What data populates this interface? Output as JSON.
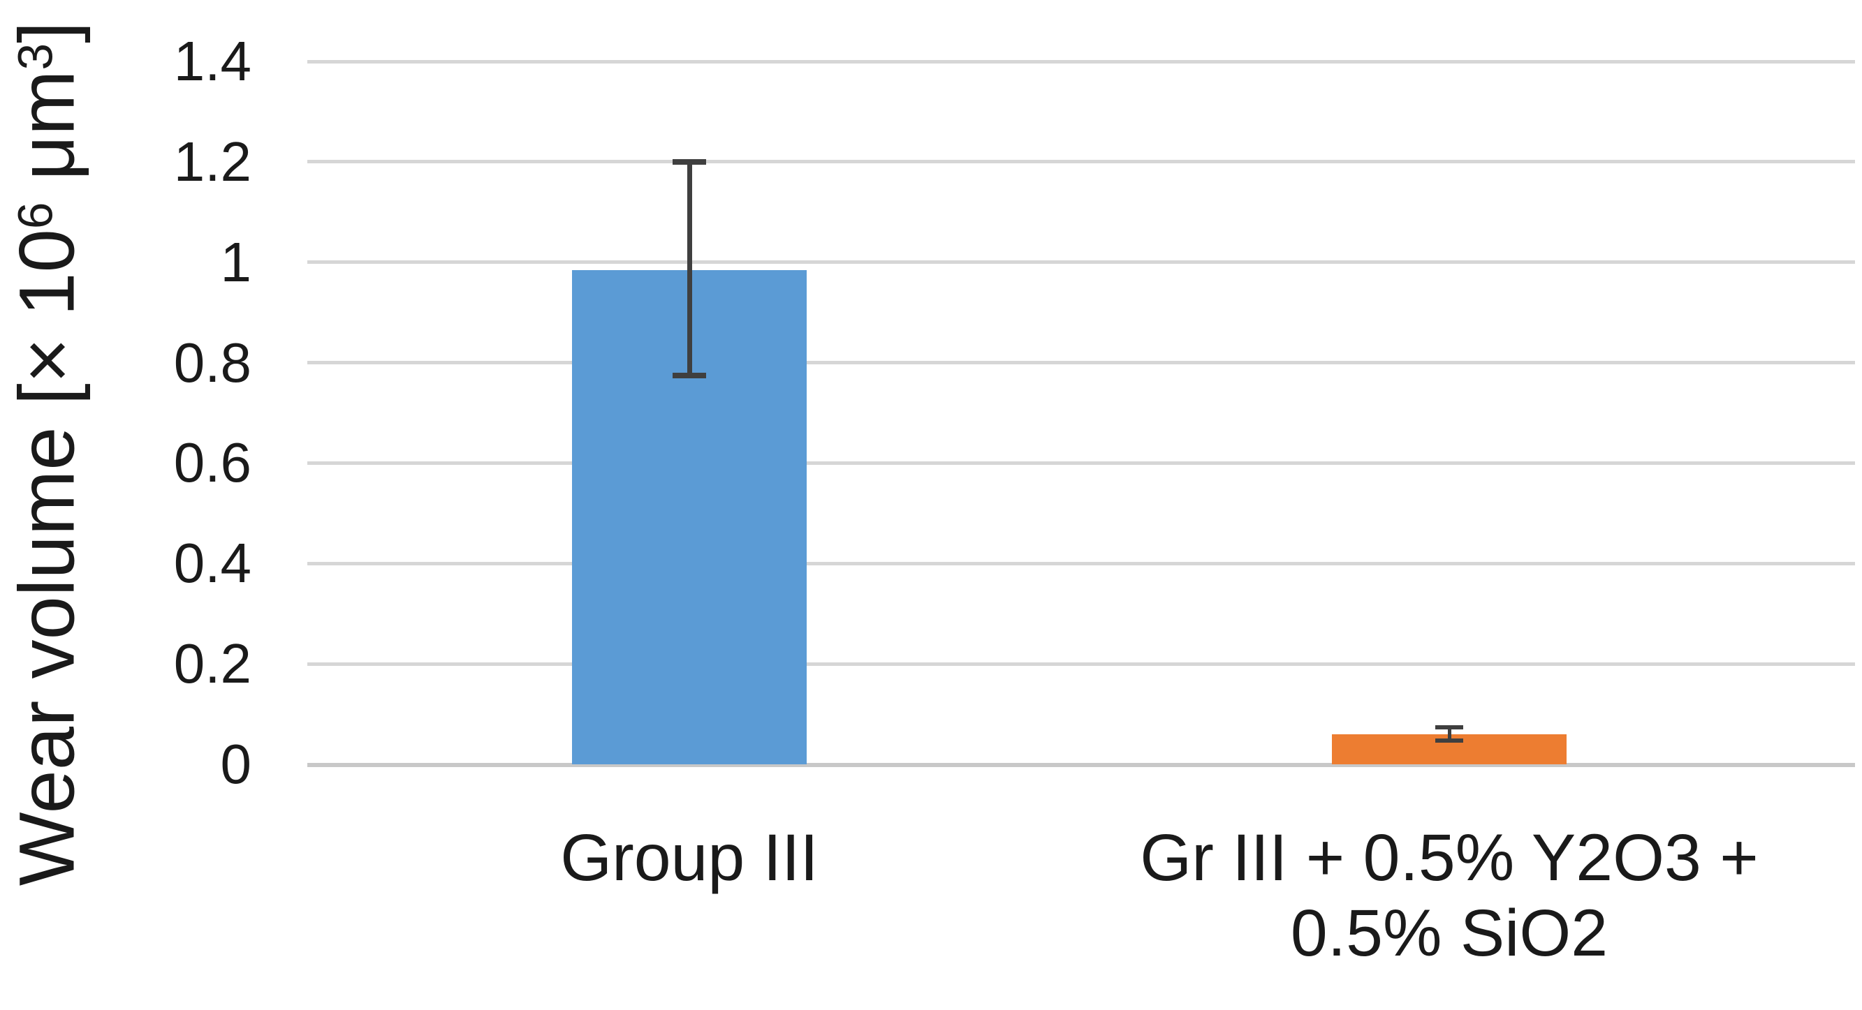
{
  "chart_data": {
    "type": "bar",
    "title": "",
    "ylabel": "Wear volume [× 10⁶ μm³]",
    "ylabel_parts": {
      "pre": "Wear volume [× 10",
      "sup1": "6",
      "mid": " μm",
      "sup2": "3",
      "post": "]"
    },
    "xlabel": "",
    "ylim": [
      0,
      1.4
    ],
    "yticks": [
      0,
      0.2,
      0.4,
      0.6,
      0.8,
      1,
      1.2,
      1.4
    ],
    "ytick_labels": [
      "0",
      "0.2",
      "0.4",
      "0.6",
      "0.8",
      "1",
      "1.2",
      "1.4"
    ],
    "categories": [
      "Group III",
      "Gr III + 0.5% Y2O3 + 0.5% SiO2"
    ],
    "category_labels_wrapped": [
      "Group III",
      "Gr III + 0.5% Y2O3 +\n0.5% SiO2"
    ],
    "series": [
      {
        "name": "Wear volume",
        "values": [
          0.985,
          0.06
        ]
      }
    ],
    "bar_colors": [
      "#5B9BD5",
      "#ED7D31"
    ],
    "error_bars": [
      {
        "upper": 1.2,
        "lower": 0.775
      },
      {
        "upper": 0.073,
        "lower": 0.047
      }
    ],
    "error_bar_color": "#3F3F3F",
    "gridline_color": "#D6D6D6",
    "axis_line_color": "#C8C8C8",
    "grid": "horizontal",
    "legend": "none",
    "background": "#FFFFFF",
    "text_color": "#1A1A1A"
  }
}
